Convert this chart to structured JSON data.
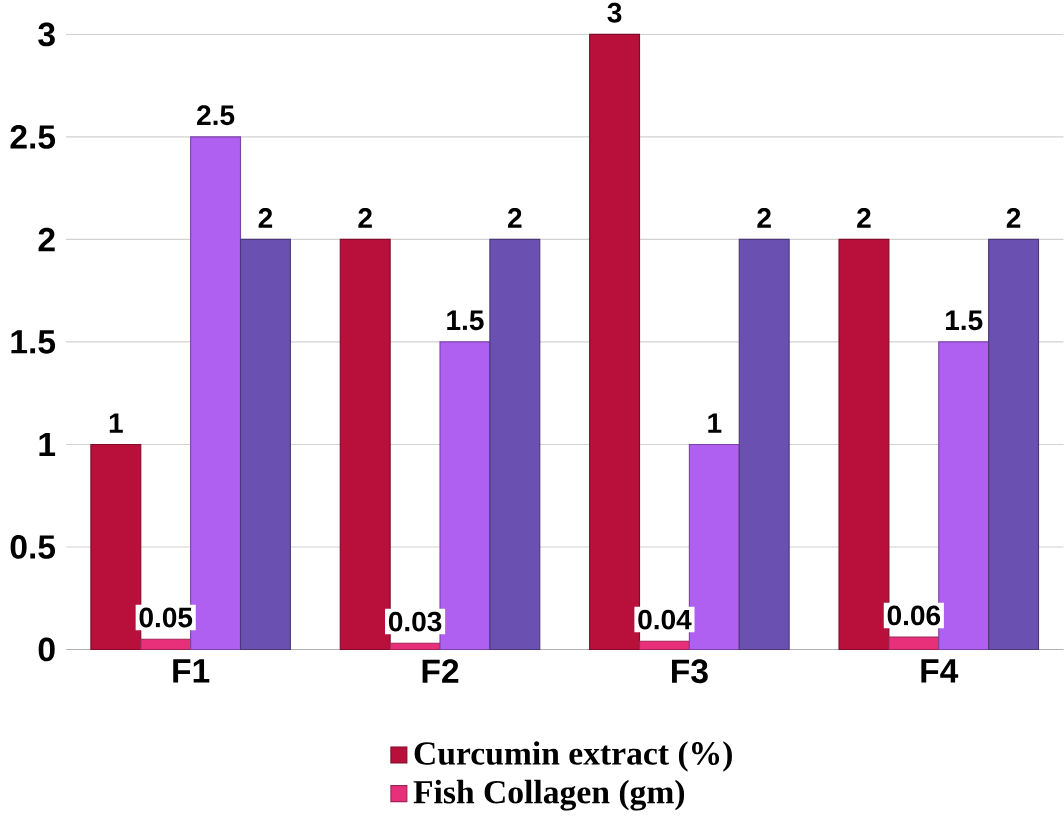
{
  "chart_data": {
    "type": "bar",
    "categories": [
      "F1",
      "F2",
      "F3",
      "F4"
    ],
    "series": [
      {
        "name": "Curcumin extract (%)",
        "color": "#b8103a",
        "values": [
          1,
          2,
          3,
          2
        ]
      },
      {
        "name": "Fish Collagen (gm)",
        "color": "#e8307a",
        "values": [
          0.05,
          0.03,
          0.04,
          0.06
        ]
      },
      {
        "color": "#b060f0",
        "values": [
          2.5,
          1.5,
          1,
          1.5
        ]
      },
      {
        "color": "#6a50b0",
        "values": [
          2,
          2,
          2,
          2
        ]
      }
    ],
    "ylim": [
      0,
      3
    ],
    "yticks": [
      0,
      0.5,
      1,
      1.5,
      2,
      2.5,
      3
    ],
    "grid": "y",
    "legend": "bottom",
    "data_labels": true
  }
}
